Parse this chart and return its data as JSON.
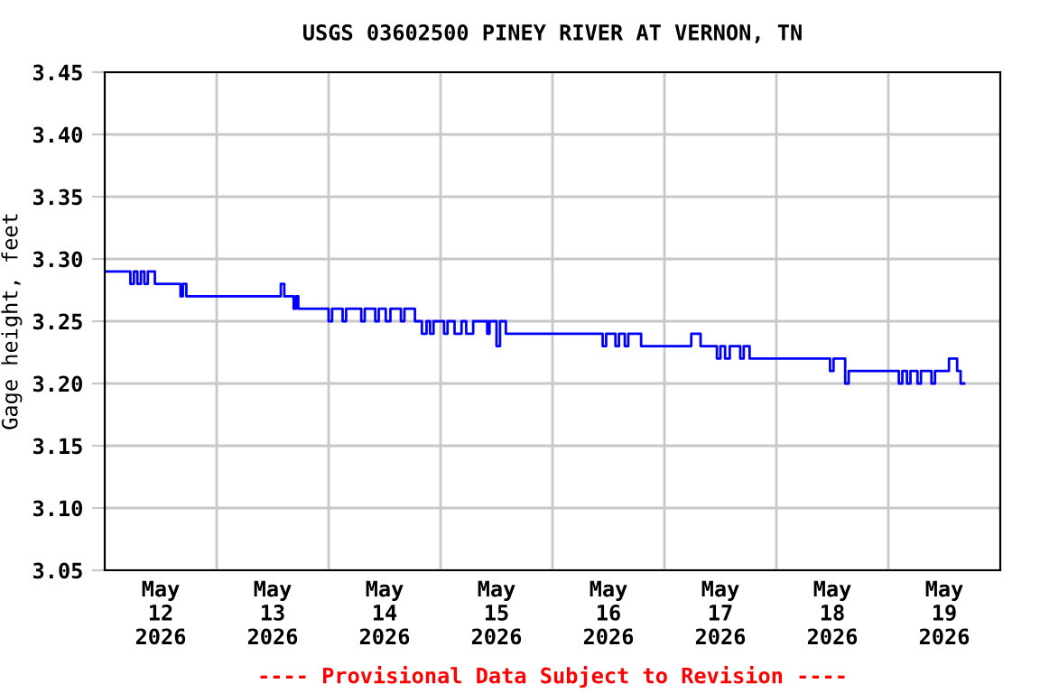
{
  "chart_data": {
    "type": "step",
    "title": "USGS 03602500 PINEY RIVER AT VERNON, TN",
    "ylabel": "Gage height, feet",
    "annotations": [
      "---- Provisional Data Subject to Revision ----"
    ],
    "x": [
      "2026-05-12T00:00",
      "2026-05-12T05:30",
      "2026-05-12T06:15",
      "2026-05-12T07:00",
      "2026-05-12T07:45",
      "2026-05-12T08:30",
      "2026-05-12T09:15",
      "2026-05-12T10:45",
      "2026-05-12T16:15",
      "2026-05-12T16:45",
      "2026-05-12T17:30",
      "2026-05-13T13:45",
      "2026-05-13T14:30",
      "2026-05-13T16:30",
      "2026-05-13T17:00",
      "2026-05-13T17:30",
      "2026-05-14T00:00",
      "2026-05-14T00:45",
      "2026-05-14T03:00",
      "2026-05-14T03:45",
      "2026-05-14T07:00",
      "2026-05-14T07:45",
      "2026-05-14T10:00",
      "2026-05-14T10:45",
      "2026-05-14T12:15",
      "2026-05-14T13:15",
      "2026-05-14T15:30",
      "2026-05-14T16:15",
      "2026-05-14T18:30",
      "2026-05-14T20:00",
      "2026-05-14T21:00",
      "2026-05-14T21:45",
      "2026-05-14T22:30",
      "2026-05-15T00:45",
      "2026-05-15T01:30",
      "2026-05-15T03:00",
      "2026-05-15T04:30",
      "2026-05-15T05:30",
      "2026-05-15T07:00",
      "2026-05-15T10:00",
      "2026-05-15T10:30",
      "2026-05-15T12:00",
      "2026-05-15T12:45",
      "2026-05-15T14:00",
      "2026-05-16T10:45",
      "2026-05-16T11:30",
      "2026-05-16T13:30",
      "2026-05-16T14:15",
      "2026-05-16T15:30",
      "2026-05-16T16:15",
      "2026-05-16T19:00",
      "2026-05-17T05:45",
      "2026-05-17T07:45",
      "2026-05-17T11:15",
      "2026-05-17T12:00",
      "2026-05-17T13:00",
      "2026-05-17T14:00",
      "2026-05-17T16:15",
      "2026-05-17T17:00",
      "2026-05-17T18:15",
      "2026-05-18T11:30",
      "2026-05-18T12:15",
      "2026-05-18T14:45",
      "2026-05-18T15:30",
      "2026-05-19T02:15",
      "2026-05-19T03:00",
      "2026-05-19T04:00",
      "2026-05-19T04:45",
      "2026-05-19T06:15",
      "2026-05-19T07:00",
      "2026-05-19T09:15",
      "2026-05-19T10:00",
      "2026-05-19T13:00",
      "2026-05-19T14:45",
      "2026-05-19T15:30",
      "2026-05-19T16:15"
    ],
    "series": [
      {
        "color": "#0000ff",
        "values": [
          3.29,
          3.28,
          3.29,
          3.28,
          3.29,
          3.28,
          3.29,
          3.28,
          3.27,
          3.28,
          3.27,
          3.28,
          3.27,
          3.26,
          3.27,
          3.26,
          3.25,
          3.26,
          3.25,
          3.26,
          3.25,
          3.26,
          3.25,
          3.26,
          3.25,
          3.26,
          3.25,
          3.26,
          3.25,
          3.24,
          3.25,
          3.24,
          3.25,
          3.24,
          3.25,
          3.24,
          3.25,
          3.24,
          3.25,
          3.24,
          3.25,
          3.23,
          3.25,
          3.24,
          3.23,
          3.24,
          3.23,
          3.24,
          3.23,
          3.24,
          3.23,
          3.24,
          3.23,
          3.22,
          3.23,
          3.22,
          3.23,
          3.22,
          3.23,
          3.22,
          3.21,
          3.22,
          3.2,
          3.21,
          3.2,
          3.21,
          3.2,
          3.21,
          3.2,
          3.21,
          3.2,
          3.21,
          3.22,
          3.21,
          3.2,
          3.2
        ]
      }
    ],
    "xlim": [
      "2026-05-12T00:00",
      "2026-05-20T00:00"
    ],
    "xticks": [
      {
        "value": "2026-05-12T12:00",
        "label": "May\n12\n2026"
      },
      {
        "value": "2026-05-13T00:00",
        "label": null
      },
      {
        "value": "2026-05-13T12:00",
        "label": "May\n13\n2026"
      },
      {
        "value": "2026-05-14T00:00",
        "label": null
      },
      {
        "value": "2026-05-14T12:00",
        "label": "May\n14\n2026"
      },
      {
        "value": "2026-05-15T00:00",
        "label": null
      },
      {
        "value": "2026-05-15T12:00",
        "label": "May\n15\n2026"
      },
      {
        "value": "2026-05-16T00:00",
        "label": null
      },
      {
        "value": "2026-05-16T12:00",
        "label": "May\n16\n2026"
      },
      {
        "value": "2026-05-17T00:00",
        "label": null
      },
      {
        "value": "2026-05-17T12:00",
        "label": "May\n17\n2026"
      },
      {
        "value": "2026-05-18T00:00",
        "label": null
      },
      {
        "value": "2026-05-18T12:00",
        "label": "May\n18\n2026"
      },
      {
        "value": "2026-05-19T00:00",
        "label": null
      },
      {
        "value": "2026-05-19T12:00",
        "label": "May\n19\n2026"
      }
    ],
    "ylim": [
      3.05,
      3.45
    ],
    "yticks": [
      {
        "value": 3.05,
        "label": "3.05"
      },
      {
        "value": 3.1,
        "label": "3.10"
      },
      {
        "value": 3.15,
        "label": "3.15"
      },
      {
        "value": 3.2,
        "label": "3.20"
      },
      {
        "value": 3.25,
        "label": "3.25"
      },
      {
        "value": 3.3,
        "label": "3.30"
      },
      {
        "value": 3.35,
        "label": "3.35"
      },
      {
        "value": 3.4,
        "label": "3.40"
      },
      {
        "value": 3.45,
        "label": "3.45"
      }
    ],
    "grid": true,
    "legend": false
  }
}
